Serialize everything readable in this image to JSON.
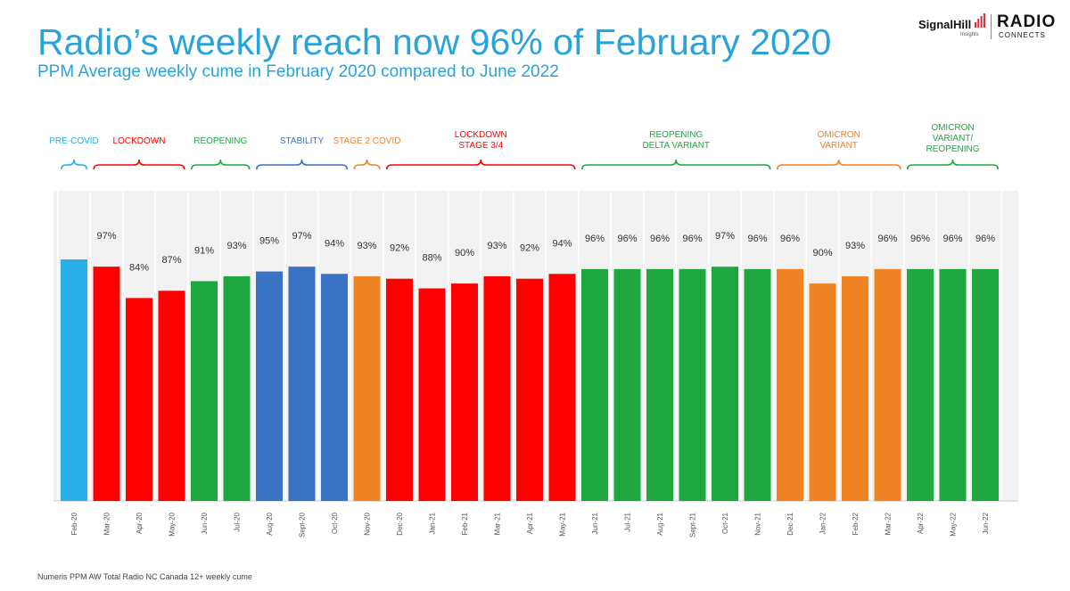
{
  "header": {
    "title": "Radio’s weekly reach now 96% of February 2020",
    "subtitle": "PPM Average weekly cume in February 2020 compared to June 2022"
  },
  "logos": {
    "signal_hill": "SignalHill",
    "signal_hill_sub": "Insights",
    "radio": "RADIO",
    "connects": "CONNECTS"
  },
  "footnote": "Numeris PPM AW Total Radio NC Canada 12+ weekly cume",
  "colors": {
    "pre_covid": "#29aee8",
    "red": "#ff0000",
    "green": "#1fa83f",
    "blue": "#3a73c4",
    "orange": "#f08324",
    "title": "#29a3dc"
  },
  "chart_data": {
    "type": "bar",
    "title": "",
    "xlabel": "",
    "ylabel": "",
    "ylim": [
      0,
      140
    ],
    "categories": [
      "Feb-20",
      "Mar-20",
      "Apr-20",
      "May-20",
      "Jun-20",
      "Jul-20",
      "Aug-20",
      "Sept-20",
      "Oct-20",
      "Nov-20",
      "Dec-20",
      "Jan-21",
      "Feb-21",
      "Mar-21",
      "Apr-21",
      "May-21",
      "Jun-21",
      "Jul-21",
      "Aug-21",
      "Sept-21",
      "Oct-21",
      "Nov-21",
      "Dec-21",
      "Jan-22",
      "Feb-22",
      "Mar-22",
      "Apr-22",
      "May-22",
      "Jun-22"
    ],
    "values": [
      100,
      97,
      84,
      87,
      91,
      93,
      95,
      97,
      94,
      93,
      92,
      88,
      90,
      93,
      92,
      94,
      96,
      96,
      96,
      96,
      97,
      96,
      96,
      90,
      93,
      96,
      96,
      96,
      96
    ],
    "data_labels": [
      "",
      "97%",
      "84%",
      "87%",
      "91%",
      "93%",
      "95%",
      "97%",
      "94%",
      "93%",
      "92%",
      "88%",
      "90%",
      "93%",
      "92%",
      "94%",
      "96%",
      "96%",
      "96%",
      "96%",
      "97%",
      "96%",
      "96%",
      "90%",
      "93%",
      "96%",
      "96%",
      "96%",
      "96%"
    ],
    "bar_colors": [
      "#29aee8",
      "#ff0000",
      "#ff0000",
      "#ff0000",
      "#1fa83f",
      "#1fa83f",
      "#3a73c4",
      "#3a73c4",
      "#3a73c4",
      "#f08324",
      "#ff0000",
      "#ff0000",
      "#ff0000",
      "#ff0000",
      "#ff0000",
      "#ff0000",
      "#1fa83f",
      "#1fa83f",
      "#1fa83f",
      "#1fa83f",
      "#1fa83f",
      "#1fa83f",
      "#f08324",
      "#f08324",
      "#f08324",
      "#f08324",
      "#1fa83f",
      "#1fa83f",
      "#1fa83f"
    ],
    "phases": [
      {
        "lines": [
          "PRE-COVID"
        ],
        "start": 0,
        "end": 0,
        "color": "#29aee8"
      },
      {
        "lines": [
          "LOCKDOWN"
        ],
        "start": 1,
        "end": 3,
        "color": "#ff0000"
      },
      {
        "lines": [
          "REOPENING"
        ],
        "start": 4,
        "end": 5,
        "color": "#1fa83f"
      },
      {
        "lines": [
          "STABILITY"
        ],
        "start": 6,
        "end": 8,
        "color": "#3a73c4"
      },
      {
        "lines": [
          "STAGE 2 COVID"
        ],
        "start": 9,
        "end": 9,
        "color": "#f08324"
      },
      {
        "lines": [
          "LOCKDOWN",
          "STAGE 3/4"
        ],
        "start": 10,
        "end": 15,
        "color": "#ff0000"
      },
      {
        "lines": [
          "REOPENING",
          "DELTA VARIANT"
        ],
        "start": 16,
        "end": 21,
        "color": "#1fa83f"
      },
      {
        "lines": [
          "OMICRON",
          "VARIANT"
        ],
        "start": 22,
        "end": 25,
        "color": "#f08324"
      },
      {
        "lines": [
          "OMICRON",
          "VARIANT/",
          "REOPENING"
        ],
        "start": 26,
        "end": 28,
        "color": "#1fa83f"
      }
    ],
    "grid": false,
    "legend": "none"
  }
}
